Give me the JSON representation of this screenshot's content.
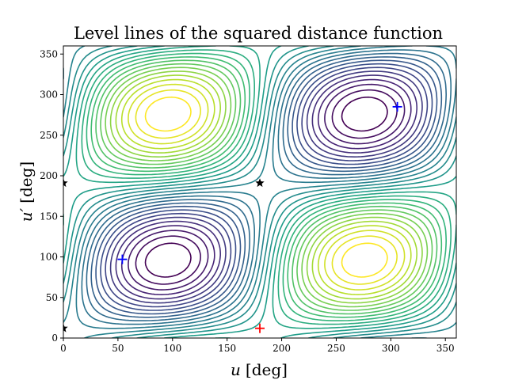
{
  "chart_data": {
    "type": "contour",
    "title": "Level lines of the squared distance function",
    "xlabel_var": "u",
    "xlabel_unit": "[deg]",
    "ylabel_var": "u′",
    "ylabel_unit": "[deg]",
    "xlim": [
      0,
      360
    ],
    "ylim": [
      0,
      360
    ],
    "xticks": [
      0,
      50,
      100,
      150,
      200,
      250,
      300,
      350
    ],
    "yticks": [
      0,
      50,
      100,
      150,
      200,
      250,
      300,
      350
    ],
    "grid": false,
    "colormap": "viridis",
    "levels": 30,
    "markers": [
      {
        "name": "minimum",
        "symbol": "+",
        "color": "#0000ff",
        "x": 54,
        "y": 97
      },
      {
        "name": "minimum",
        "symbol": "+",
        "color": "#0000ff",
        "x": 306,
        "y": 285
      },
      {
        "name": "maximum",
        "symbol": "+",
        "color": "#ff0000",
        "x": 180,
        "y": 12
      },
      {
        "name": "saddle",
        "symbol": "star",
        "color": "#000000",
        "x": 180,
        "y": 191
      },
      {
        "name": "saddle",
        "symbol": "star",
        "color": "#000000",
        "x": 0,
        "y": 191
      },
      {
        "name": "saddle",
        "symbol": "star",
        "color": "#000000",
        "x": 0,
        "y": 12
      }
    ]
  }
}
